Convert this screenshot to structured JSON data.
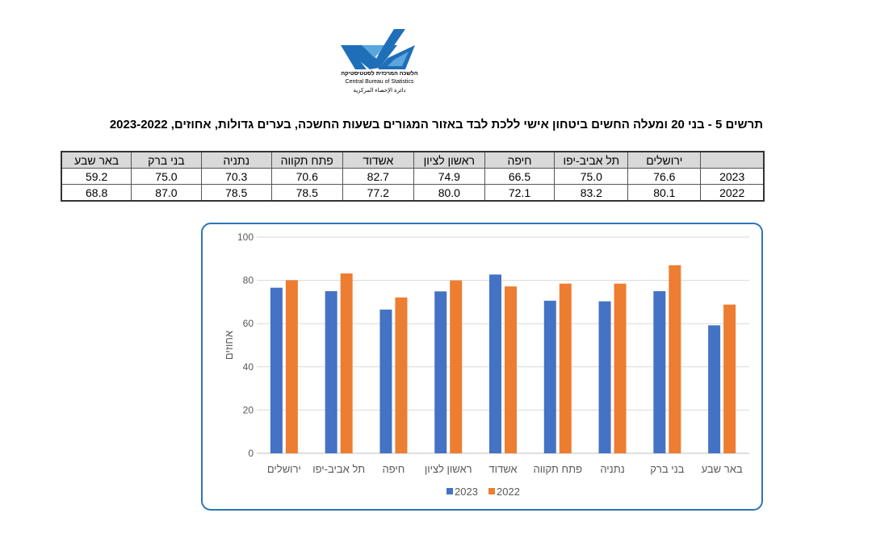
{
  "logo": {
    "hebrew": "הלשכה המרכזית לסטטיסטיקה",
    "english": "Central Bureau of Statistics",
    "arabic": "دائرة الإحصاء المركزية"
  },
  "title": "תרשים 5 - בני 20 ומעלה החשים ביטחון אישי ללכת לבד באזור המגורים בשעות החשכה, בערים גדולות, אחוזים, 2023-2022",
  "table": {
    "columns": [
      "ירושלים",
      "תל אביב-יפו",
      "חיפה",
      "ראשון לציון",
      "אשדוד",
      "פתח תקווה",
      "נתניה",
      "בני ברק",
      "באר שבע"
    ],
    "rows": [
      {
        "year": "2023",
        "values": [
          "76.6",
          "75.0",
          "66.5",
          "74.9",
          "82.7",
          "70.6",
          "70.3",
          "75.0",
          "59.2"
        ]
      },
      {
        "year": "2022",
        "values": [
          "80.1",
          "83.2",
          "72.1",
          "80.0",
          "77.2",
          "78.5",
          "78.5",
          "87.0",
          "68.8"
        ]
      }
    ]
  },
  "chart_data": {
    "type": "bar",
    "categories": [
      "ירושלים",
      "תל אביב-יפו",
      "חיפה",
      "ראשון לציון",
      "אשדוד",
      "פתח תקווה",
      "נתניה",
      "בני ברק",
      "באר שבע"
    ],
    "series": [
      {
        "name": "2023",
        "color": "#4472c4",
        "values": [
          76.6,
          75.0,
          66.5,
          74.9,
          82.7,
          70.6,
          70.3,
          75.0,
          59.2
        ]
      },
      {
        "name": "2022",
        "color": "#ed7d31",
        "values": [
          80.1,
          83.2,
          72.1,
          80.0,
          77.2,
          78.5,
          78.5,
          87.0,
          68.8
        ]
      }
    ],
    "ylabel": "אחוזים",
    "xlabel": "",
    "ylim": [
      0,
      100
    ],
    "yticks": [
      0,
      20,
      40,
      60,
      80,
      100
    ],
    "grid": true,
    "legend": "bottom-center"
  }
}
